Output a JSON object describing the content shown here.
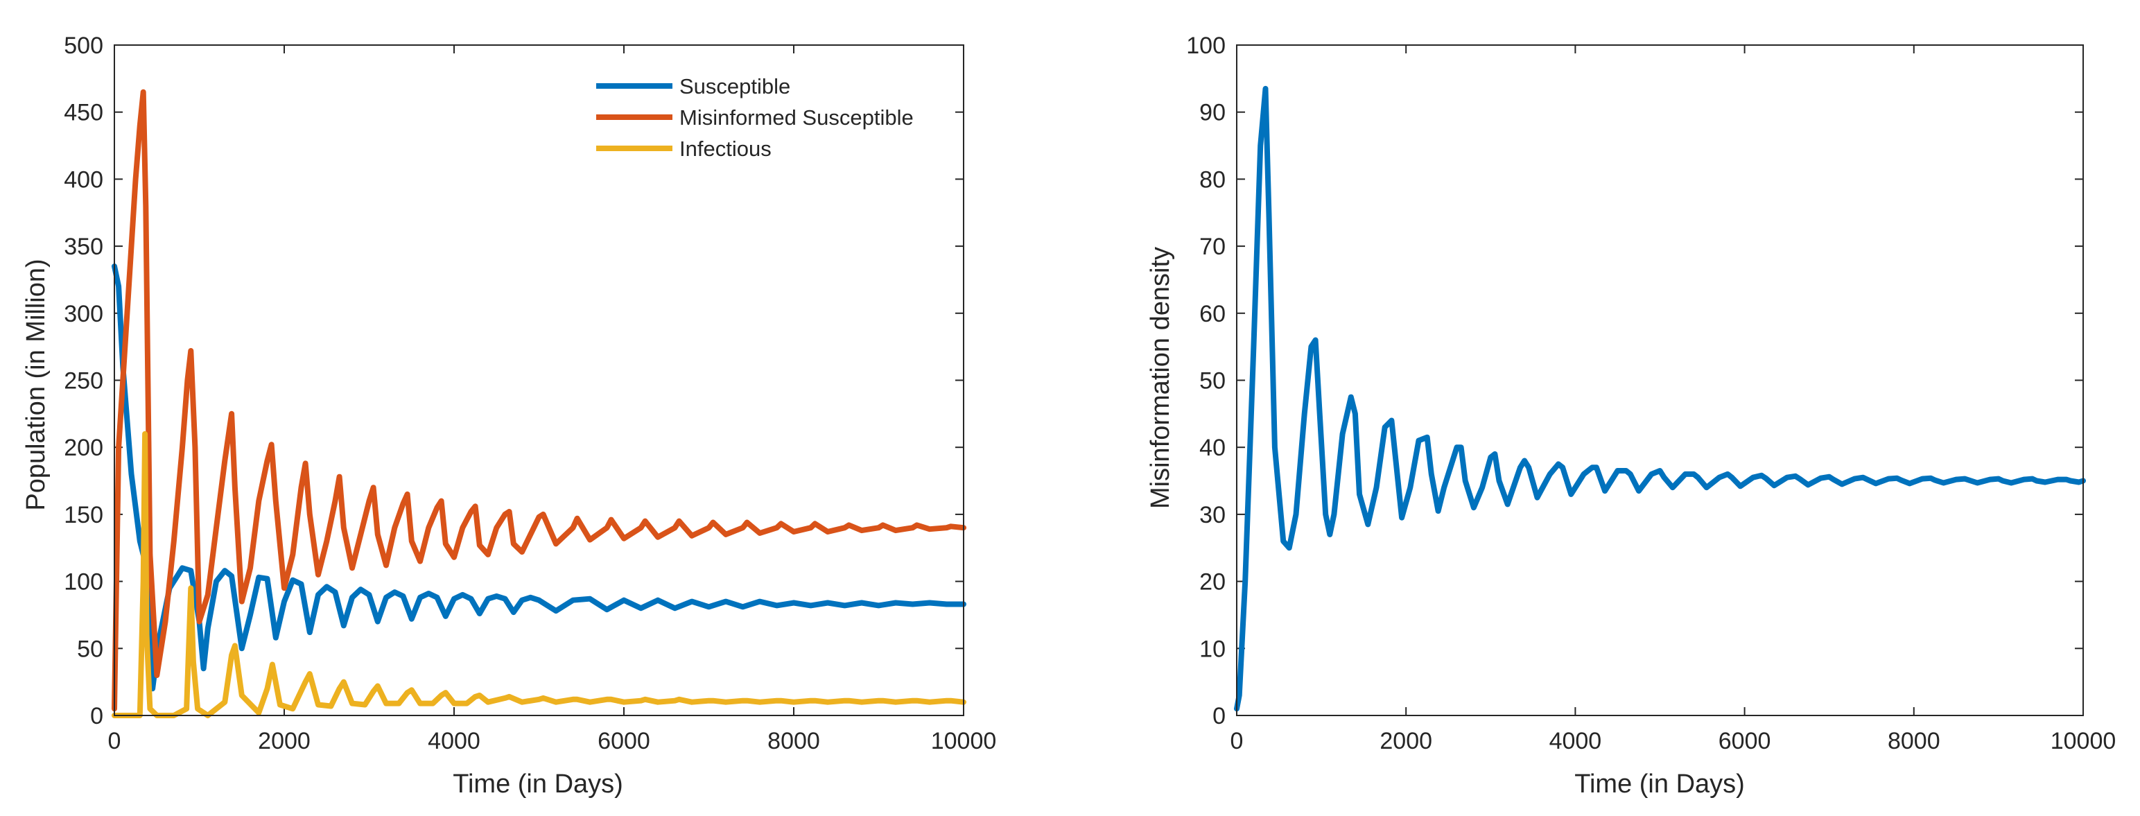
{
  "chart_data": [
    {
      "type": "line",
      "xlabel": "Time (in Days)",
      "ylabel": "Population (in Million)",
      "xlim": [
        0,
        10000
      ],
      "ylim": [
        0,
        500
      ],
      "xticks": [
        0,
        2000,
        4000,
        6000,
        8000,
        10000
      ],
      "yticks": [
        0,
        50,
        100,
        150,
        200,
        250,
        300,
        350,
        400,
        450,
        500
      ],
      "legend_position": "top-right",
      "series": [
        {
          "name": "Susceptible",
          "color": "#0072BD",
          "x": [
            0,
            50,
            100,
            200,
            300,
            400,
            450,
            520,
            650,
            800,
            900,
            1000,
            1050,
            1100,
            1200,
            1300,
            1380,
            1500,
            1600,
            1700,
            1800,
            1900,
            2000,
            2100,
            2200,
            2300,
            2400,
            2500,
            2600,
            2700,
            2800,
            2900,
            3000,
            3100,
            3200,
            3300,
            3400,
            3500,
            3600,
            3700,
            3800,
            3900,
            4000,
            4100,
            4200,
            4300,
            4400,
            4500,
            4600,
            4700,
            4800,
            4900,
            5000,
            5200,
            5400,
            5600,
            5800,
            6000,
            6200,
            6400,
            6600,
            6800,
            7000,
            7200,
            7400,
            7600,
            7800,
            8000,
            8200,
            8400,
            8600,
            8800,
            9000,
            9200,
            9400,
            9600,
            9800,
            10000
          ],
          "values": [
            335,
            320,
            260,
            180,
            130,
            105,
            20,
            55,
            95,
            110,
            108,
            70,
            35,
            65,
            100,
            108,
            104,
            50,
            75,
            103,
            102,
            58,
            85,
            101,
            98,
            62,
            90,
            96,
            92,
            67,
            88,
            94,
            90,
            70,
            88,
            92,
            89,
            72,
            88,
            91,
            88,
            74,
            87,
            90,
            87,
            76,
            87,
            89,
            87,
            77,
            86,
            88,
            86,
            78,
            86,
            87,
            79,
            86,
            80,
            86,
            80,
            85,
            81,
            85,
            81,
            85,
            82,
            84,
            82,
            84,
            82,
            84,
            82,
            84,
            83,
            84,
            83,
            83
          ]
        },
        {
          "name": "Misinformed Susceptible",
          "color": "#D95319",
          "x": [
            0,
            50,
            150,
            250,
            300,
            340,
            370,
            420,
            500,
            600,
            700,
            800,
            860,
            900,
            950,
            1000,
            1100,
            1200,
            1300,
            1380,
            1420,
            1500,
            1600,
            1700,
            1800,
            1850,
            1900,
            2000,
            2100,
            2200,
            2250,
            2300,
            2400,
            2500,
            2600,
            2650,
            2700,
            2800,
            2900,
            3000,
            3050,
            3100,
            3200,
            3300,
            3400,
            3450,
            3500,
            3600,
            3700,
            3800,
            3850,
            3900,
            4000,
            4100,
            4200,
            4250,
            4300,
            4400,
            4500,
            4600,
            4650,
            4700,
            4800,
            5000,
            5050,
            5200,
            5400,
            5450,
            5600,
            5800,
            5850,
            6000,
            6200,
            6250,
            6400,
            6600,
            6650,
            6800,
            7000,
            7050,
            7200,
            7400,
            7450,
            7600,
            7800,
            7850,
            8000,
            8200,
            8250,
            8400,
            8600,
            8650,
            8800,
            9000,
            9050,
            9200,
            9400,
            9450,
            9600,
            9800,
            9850,
            10000
          ],
          "values": [
            5,
            200,
            300,
            400,
            440,
            465,
            380,
            120,
            30,
            70,
            130,
            200,
            250,
            272,
            200,
            70,
            90,
            140,
            190,
            225,
            170,
            85,
            110,
            160,
            190,
            202,
            160,
            95,
            120,
            170,
            188,
            150,
            105,
            130,
            160,
            178,
            140,
            110,
            135,
            160,
            170,
            135,
            112,
            140,
            158,
            165,
            130,
            115,
            140,
            155,
            160,
            128,
            118,
            140,
            152,
            156,
            127,
            120,
            140,
            150,
            152,
            128,
            122,
            148,
            150,
            128,
            140,
            147,
            131,
            140,
            146,
            132,
            140,
            145,
            133,
            140,
            145,
            134,
            140,
            144,
            135,
            140,
            144,
            136,
            140,
            143,
            137,
            140,
            143,
            137,
            140,
            142,
            138,
            140,
            142,
            138,
            140,
            142,
            139,
            140,
            141,
            140
          ]
        },
        {
          "name": "Infectious",
          "color": "#EDB120",
          "x": [
            0,
            300,
            340,
            360,
            380,
            420,
            500,
            700,
            850,
            900,
            930,
            980,
            1100,
            1300,
            1380,
            1420,
            1500,
            1700,
            1800,
            1860,
            1950,
            2100,
            2250,
            2300,
            2400,
            2550,
            2650,
            2700,
            2800,
            2950,
            3050,
            3100,
            3200,
            3350,
            3450,
            3500,
            3600,
            3750,
            3850,
            3900,
            4000,
            4150,
            4250,
            4300,
            4400,
            4600,
            4650,
            4800,
            5000,
            5050,
            5200,
            5400,
            5450,
            5600,
            5800,
            5850,
            6000,
            6200,
            6250,
            6400,
            6600,
            6650,
            6800,
            7000,
            7050,
            7200,
            7400,
            7450,
            7600,
            7800,
            7850,
            8000,
            8200,
            8250,
            8400,
            8600,
            8650,
            8800,
            9000,
            9050,
            9200,
            9400,
            9450,
            9600,
            9800,
            9850,
            10000
          ],
          "values": [
            0,
            0,
            100,
            210,
            60,
            5,
            0,
            0,
            5,
            95,
            40,
            5,
            0,
            10,
            45,
            52,
            15,
            2,
            20,
            38,
            8,
            5,
            25,
            31,
            8,
            7,
            20,
            25,
            9,
            8,
            18,
            22,
            9,
            9,
            17,
            19,
            9,
            9,
            15,
            17,
            9,
            9,
            14,
            15,
            10,
            13,
            14,
            10,
            12,
            13,
            10,
            12,
            12,
            10,
            12,
            12,
            10,
            11,
            12,
            10,
            11,
            12,
            10,
            11,
            11,
            10,
            11,
            11,
            10,
            11,
            11,
            10,
            11,
            11,
            10,
            11,
            11,
            10,
            11,
            11,
            10,
            11,
            11,
            10,
            11,
            11,
            10
          ]
        }
      ]
    },
    {
      "type": "line",
      "xlabel": "Time (in Days)",
      "ylabel": "Misinformation density",
      "xlim": [
        0,
        10000
      ],
      "ylim": [
        0,
        100
      ],
      "xticks": [
        0,
        2000,
        4000,
        6000,
        8000,
        10000
      ],
      "yticks": [
        0,
        10,
        20,
        30,
        40,
        50,
        60,
        70,
        80,
        90,
        100
      ],
      "series": [
        {
          "name": "Misinformation density",
          "color": "#0072BD",
          "x": [
            0,
            30,
            100,
            200,
            280,
            340,
            380,
            450,
            550,
            620,
            700,
            800,
            880,
            930,
            980,
            1050,
            1100,
            1150,
            1250,
            1350,
            1400,
            1450,
            1550,
            1650,
            1750,
            1830,
            1880,
            1950,
            2050,
            2150,
            2250,
            2300,
            2380,
            2450,
            2600,
            2650,
            2700,
            2800,
            2900,
            3000,
            3050,
            3100,
            3200,
            3350,
            3400,
            3450,
            3550,
            3700,
            3800,
            3850,
            3950,
            4100,
            4200,
            4250,
            4350,
            4500,
            4600,
            4650,
            4750,
            4900,
            5000,
            5050,
            5150,
            5300,
            5400,
            5450,
            5550,
            5700,
            5800,
            5850,
            5950,
            6100,
            6200,
            6250,
            6350,
            6500,
            6600,
            6650,
            6750,
            6900,
            7000,
            7050,
            7150,
            7300,
            7400,
            7450,
            7550,
            7700,
            7800,
            7850,
            7950,
            8100,
            8200,
            8250,
            8350,
            8500,
            8600,
            8650,
            8750,
            8900,
            9000,
            9050,
            9150,
            9300,
            9400,
            9450,
            9550,
            9700,
            9800,
            9850,
            9950,
            10000
          ],
          "values": [
            1,
            3,
            20,
            55,
            85,
            93.5,
            75,
            40,
            26,
            25,
            30,
            45,
            55,
            56,
            45,
            30,
            27,
            30,
            42,
            47.5,
            45,
            33,
            28.5,
            34,
            43,
            44,
            38,
            29.5,
            34,
            41,
            41.5,
            36,
            30.5,
            34,
            40,
            40,
            35,
            31,
            34,
            38.5,
            39,
            35,
            31.5,
            37,
            38,
            37,
            32.5,
            36,
            37.5,
            37,
            33,
            36,
            37,
            37,
            33.5,
            36.5,
            36.5,
            36,
            33.5,
            36,
            36.5,
            35.5,
            34,
            36,
            36,
            35.5,
            34,
            35.5,
            36,
            35.5,
            34.2,
            35.5,
            35.8,
            35.4,
            34.3,
            35.5,
            35.7,
            35.3,
            34.4,
            35.4,
            35.6,
            35.2,
            34.5,
            35.3,
            35.5,
            35.2,
            34.6,
            35.3,
            35.4,
            35.1,
            34.6,
            35.3,
            35.4,
            35.1,
            34.7,
            35.2,
            35.3,
            35.1,
            34.7,
            35.2,
            35.3,
            35,
            34.7,
            35.2,
            35.3,
            35,
            34.8,
            35.2,
            35.2,
            35,
            34.8,
            35
          ]
        }
      ]
    }
  ]
}
